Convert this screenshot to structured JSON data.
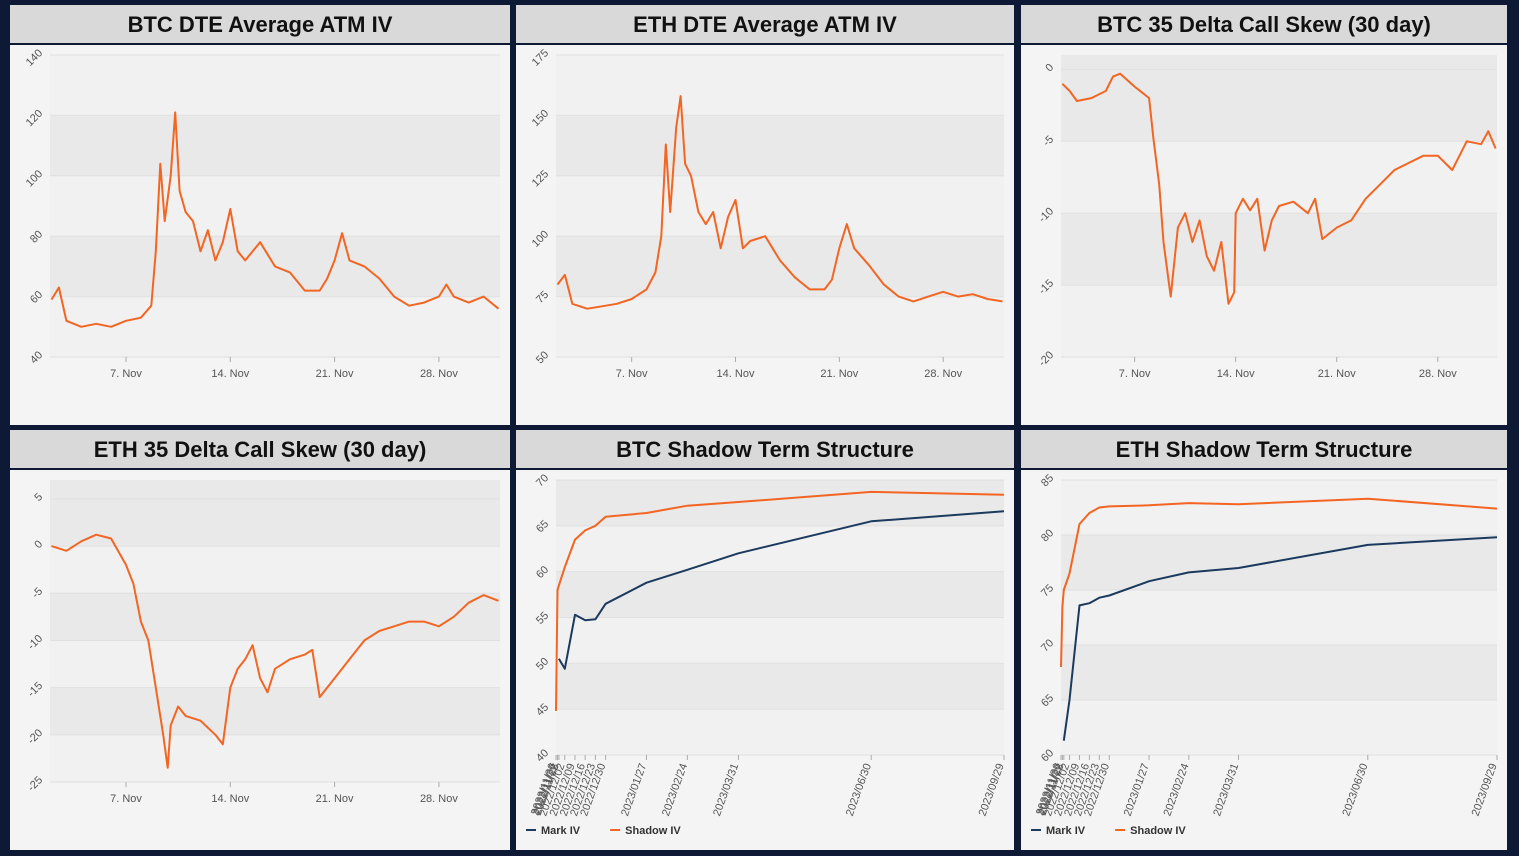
{
  "chart_data": [
    {
      "type": "line",
      "title": "BTC DTE Average ATM IV",
      "color": "#f26522",
      "x": [
        2,
        2.5,
        3,
        4,
        5,
        6,
        7,
        8,
        8.7,
        9,
        9.3,
        9.6,
        10,
        10.3,
        10.6,
        11,
        11.5,
        12,
        12.5,
        13,
        13.5,
        14,
        14.5,
        15,
        16,
        17,
        18,
        19,
        20,
        20.5,
        21,
        21.5,
        22,
        23,
        24,
        25,
        26,
        27,
        28,
        28.5,
        29,
        30,
        31,
        32
      ],
      "values": [
        59,
        63,
        52,
        50,
        51,
        50,
        52,
        53,
        57,
        75,
        104,
        85,
        100,
        121,
        95,
        88,
        85,
        75,
        82,
        72,
        78,
        89,
        75,
        72,
        78,
        70,
        68,
        62,
        62,
        66,
        72,
        81,
        72,
        70,
        66,
        60,
        57,
        58,
        60,
        64,
        60,
        58,
        60,
        56
      ],
      "xlim": [
        1.9,
        32.1
      ],
      "xticks": [
        {
          "value": 7,
          "label": "7. Nov"
        },
        {
          "value": 14,
          "label": "14. Nov"
        },
        {
          "value": 21,
          "label": "21. Nov"
        },
        {
          "value": 28,
          "label": "28. Nov"
        }
      ],
      "ylim": [
        40,
        140
      ],
      "yticks": [
        40,
        60,
        80,
        100,
        120,
        140
      ],
      "grid": true
    },
    {
      "type": "line",
      "title": "ETH DTE Average ATM IV",
      "color": "#f26522",
      "x": [
        2,
        2.5,
        3,
        4,
        5,
        6,
        7,
        8,
        8.6,
        9,
        9.3,
        9.6,
        10,
        10.3,
        10.6,
        11,
        11.5,
        12,
        12.5,
        13,
        13.5,
        14,
        14.5,
        15,
        16,
        17,
        18,
        19,
        20,
        20.5,
        21,
        21.5,
        22,
        23,
        24,
        25,
        26,
        27,
        28,
        29,
        30,
        31,
        32
      ],
      "values": [
        80,
        84,
        72,
        70,
        71,
        72,
        74,
        78,
        85,
        100,
        138,
        110,
        145,
        158,
        130,
        125,
        110,
        105,
        110,
        95,
        108,
        115,
        95,
        98,
        100,
        90,
        83,
        78,
        78,
        82,
        95,
        105,
        95,
        88,
        80,
        75,
        73,
        75,
        77,
        75,
        76,
        74,
        73
      ],
      "xlim": [
        1.9,
        32.1
      ],
      "xticks": [
        {
          "value": 7,
          "label": "7. Nov"
        },
        {
          "value": 14,
          "label": "14. Nov"
        },
        {
          "value": 21,
          "label": "21. Nov"
        },
        {
          "value": 28,
          "label": "28. Nov"
        }
      ],
      "ylim": [
        50,
        175
      ],
      "yticks": [
        50,
        75,
        100,
        125,
        150,
        175
      ],
      "grid": true
    },
    {
      "type": "line",
      "title": "BTC 35 Delta Call Skew (30 day)",
      "color": "#f26522",
      "x": [
        2,
        2.5,
        3,
        4,
        5,
        5.5,
        6,
        7,
        8,
        8.3,
        8.7,
        9,
        9.5,
        10,
        10.5,
        11,
        11.5,
        12,
        12.5,
        13,
        13.5,
        13.9,
        14,
        14.5,
        15,
        15.5,
        16,
        16.5,
        17,
        18,
        19,
        19.5,
        20,
        21,
        22,
        23,
        24,
        25,
        26,
        27,
        28,
        29,
        29.5,
        30,
        31,
        31.5,
        32
      ],
      "values": [
        -1,
        -1.5,
        -2.2,
        -2,
        -1.5,
        -0.5,
        -0.3,
        -1.2,
        -2,
        -4.8,
        -8,
        -12,
        -15.8,
        -11,
        -10,
        -12,
        -10.5,
        -13,
        -14,
        -12,
        -16.3,
        -15.5,
        -10,
        -9,
        -9.8,
        -9,
        -12.6,
        -10.5,
        -9.5,
        -9.2,
        -10,
        -9,
        -11.8,
        -11,
        -10.5,
        -9,
        -8,
        -7,
        -6.5,
        -6,
        -6,
        -7,
        -6,
        -5,
        -5.2,
        -4.3,
        -5.5
      ],
      "xlim": [
        1.9,
        32.1
      ],
      "xticks": [
        {
          "value": 7,
          "label": "7. Nov"
        },
        {
          "value": 14,
          "label": "14. Nov"
        },
        {
          "value": 21,
          "label": "21. Nov"
        },
        {
          "value": 28,
          "label": "28. Nov"
        }
      ],
      "ylim": [
        -20,
        1
      ],
      "yticks": [
        -20,
        -15,
        -10,
        -5,
        0
      ],
      "grid": true
    },
    {
      "type": "line",
      "title": "ETH 35 Delta Call Skew (30 day)",
      "color": "#f26522",
      "x": [
        2,
        3,
        4,
        5,
        6,
        7,
        7.5,
        8,
        8.5,
        9,
        9.5,
        9.8,
        10,
        10.5,
        11,
        12,
        13,
        13.5,
        14,
        14.5,
        15,
        15.5,
        16,
        16.5,
        17,
        18,
        19,
        19.5,
        20,
        21,
        22,
        23,
        24,
        25,
        26,
        27,
        28,
        29,
        30,
        31,
        32
      ],
      "values": [
        0,
        -0.5,
        0.5,
        1.2,
        0.8,
        -2,
        -4,
        -8,
        -10,
        -15,
        -20,
        -23.5,
        -19,
        -17,
        -18,
        -18.5,
        -20,
        -21,
        -15,
        -13,
        -12,
        -10.5,
        -14,
        -15.5,
        -13,
        -12,
        -11.5,
        -11,
        -16,
        -14,
        -12,
        -10,
        -9,
        -8.5,
        -8,
        -8,
        -8.5,
        -7.5,
        -6,
        -5.2,
        -5.8
      ],
      "xlim": [
        1.9,
        32.1
      ],
      "xticks": [
        {
          "value": 7,
          "label": "7. Nov"
        },
        {
          "value": 14,
          "label": "14. Nov"
        },
        {
          "value": 21,
          "label": "21. Nov"
        },
        {
          "value": 28,
          "label": "28. Nov"
        }
      ],
      "ylim": [
        -25,
        7
      ],
      "yticks": [
        -25,
        -20,
        -15,
        -10,
        -5,
        0,
        5
      ],
      "grid": true
    },
    {
      "type": "line",
      "title": "BTC Shadow Term Structure",
      "x": [
        "2022/11/26",
        "2022/11/27",
        "2022/11/28",
        "2022/12/02",
        "2022/12/09",
        "2022/12/16",
        "2022/12/23",
        "2022/12/30",
        "2023/01/27",
        "2023/02/24",
        "2023/03/31",
        "2023/06/30",
        "2023/09/29"
      ],
      "series": [
        {
          "name": "Mark IV",
          "color": "#1b3a5e",
          "values": [
            null,
            null,
            50.5,
            49.4,
            55.3,
            54.7,
            54.8,
            56.5,
            58.8,
            60.2,
            62,
            65.5,
            66.6
          ]
        },
        {
          "name": "Shadow IV",
          "color": "#f26522",
          "values": [
            44.8,
            58,
            58.5,
            60.5,
            63.5,
            64.5,
            65,
            66,
            66.4,
            67.2,
            67.6,
            68.7,
            68.4
          ]
        }
      ],
      "xlim": [
        "2022/11/26",
        "2023/09/29"
      ],
      "xticks": [
        "2022/11/26",
        "2022/11/27",
        "2022/11/28",
        "2022/12/02",
        "2022/12/09",
        "2022/12/16",
        "2022/12/23",
        "2022/12/30",
        "2023/01/27",
        "2023/02/24",
        "2023/03/31",
        "2023/06/30",
        "2023/09/29"
      ],
      "ylim": [
        40,
        70
      ],
      "yticks": [
        40,
        45,
        50,
        55,
        60,
        65,
        70
      ],
      "grid": true,
      "legend": "bottom-left"
    },
    {
      "type": "line",
      "title": "ETH Shadow Term Structure",
      "x": [
        "2022/11/26",
        "2022/11/27",
        "2022/11/28",
        "2022/12/02",
        "2022/12/09",
        "2022/12/16",
        "2022/12/23",
        "2022/12/30",
        "2023/01/27",
        "2023/02/24",
        "2023/03/31",
        "2023/06/30",
        "2023/09/29"
      ],
      "series": [
        {
          "name": "Mark IV",
          "color": "#1b3a5e",
          "values": [
            null,
            null,
            61.3,
            65,
            73.6,
            73.8,
            74.3,
            74.5,
            75.8,
            76.6,
            77,
            79.1,
            79.8
          ]
        },
        {
          "name": "Shadow IV",
          "color": "#f26522",
          "values": [
            68,
            73.5,
            75,
            76.5,
            81,
            82,
            82.5,
            82.6,
            82.7,
            82.9,
            82.8,
            83.3,
            82.4
          ]
        }
      ],
      "xlim": [
        "2022/11/26",
        "2023/09/29"
      ],
      "xticks": [
        "2022/11/26",
        "2022/11/27",
        "2022/11/28",
        "2022/12/02",
        "2022/12/09",
        "2022/12/16",
        "2022/12/23",
        "2022/12/30",
        "2023/01/27",
        "2023/02/24",
        "2023/03/31",
        "2023/06/30",
        "2023/09/29"
      ],
      "ylim": [
        60,
        85
      ],
      "yticks": [
        60,
        65,
        70,
        75,
        80,
        85
      ],
      "grid": true,
      "legend": "bottom-left"
    }
  ]
}
